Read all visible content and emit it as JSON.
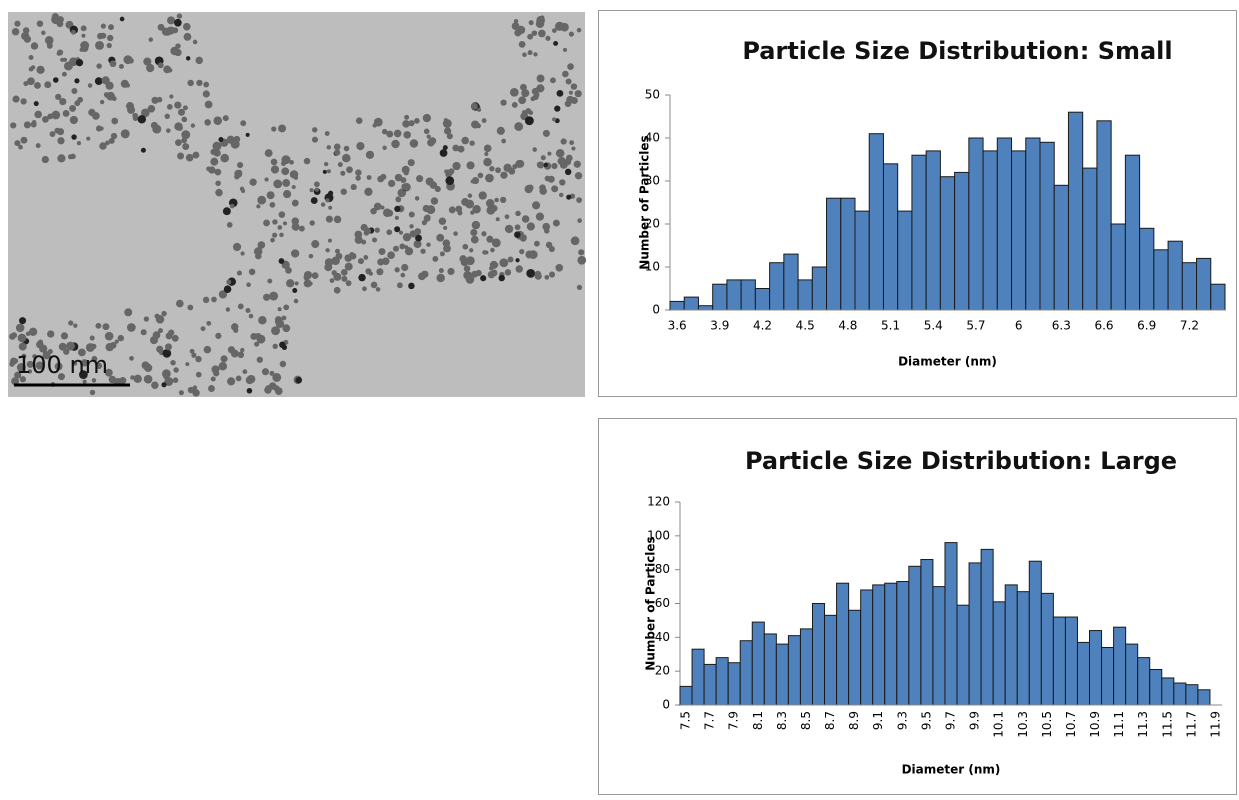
{
  "image": {
    "scale_label": "100 nm"
  },
  "chart_data": [
    {
      "type": "bar",
      "title": "Particle Size Distribution: Small",
      "x_label": "Diameter (nm)",
      "y_label": "Number of Particles",
      "categories": [
        "3.6",
        null,
        null,
        "3.9",
        null,
        null,
        "4.2",
        null,
        null,
        "4.5",
        null,
        null,
        "4.8",
        null,
        null,
        "5.1",
        null,
        null,
        "5.4",
        null,
        null,
        "5.7",
        null,
        null,
        "6",
        null,
        null,
        "6.3",
        null,
        null,
        "6.6",
        null,
        null,
        "6.9",
        null,
        null,
        "7.2",
        null,
        null
      ],
      "values": [
        2,
        3,
        1,
        6,
        7,
        7,
        5,
        11,
        13,
        7,
        10,
        26,
        26,
        23,
        41,
        34,
        23,
        36,
        37,
        31,
        32,
        40,
        37,
        40,
        37,
        40,
        39,
        29,
        46,
        33,
        44,
        20,
        36,
        19,
        14,
        16,
        11,
        12,
        6
      ],
      "color": "#4f81bd",
      "ylim": [
        0,
        50
      ],
      "yticks": [
        0,
        10,
        20,
        30,
        40,
        50
      ]
    },
    {
      "type": "bar",
      "title": "Particle Size Distribution: Large",
      "x_label": "Diameter (nm)",
      "y_label": "Number of Particles",
      "categories": [
        "7.5",
        null,
        "7.7",
        null,
        "7.9",
        null,
        "8.1",
        null,
        "8.3",
        null,
        "8.5",
        null,
        "8.7",
        null,
        "8.9",
        null,
        "9.1",
        null,
        "9.3",
        null,
        "9.5",
        null,
        "9.7",
        null,
        "9.9",
        null,
        "10.1",
        null,
        "10.3",
        null,
        "10.5",
        null,
        "10.7",
        null,
        "10.9",
        null,
        "11.1",
        null,
        "11.3",
        null,
        "11.5",
        null,
        "11.7",
        null,
        "11.9"
      ],
      "values": [
        11,
        33,
        24,
        28,
        25,
        38,
        49,
        42,
        36,
        41,
        45,
        60,
        53,
        72,
        56,
        68,
        71,
        72,
        73,
        82,
        86,
        70,
        96,
        59,
        84,
        92,
        61,
        71,
        67,
        85,
        66,
        52,
        52,
        37,
        44,
        34,
        46,
        36,
        28,
        21,
        16,
        13,
        12,
        9,
        0
      ],
      "color": "#4f81bd",
      "ylim": [
        0,
        120
      ],
      "yticks": [
        0,
        20,
        40,
        60,
        80,
        100,
        120
      ]
    }
  ]
}
